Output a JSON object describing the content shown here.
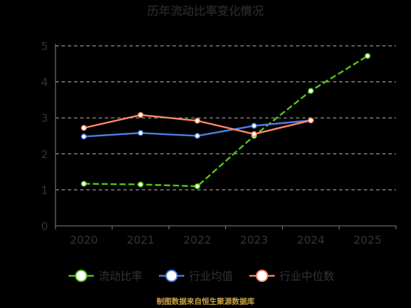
{
  "chart_data": {
    "type": "line",
    "title": "历年流动比率变化情况",
    "categories": [
      "2020",
      "2021",
      "2022",
      "2023",
      "2024",
      "2025"
    ],
    "ylim": [
      0,
      5
    ],
    "yticks": [
      "0",
      "1",
      "2",
      "3",
      "4",
      "5"
    ],
    "grid": true,
    "legend_position": "bottom",
    "series": [
      {
        "name": "流动比率",
        "color": "#52c41a",
        "style": "dashed",
        "values": [
          1.17,
          1.15,
          1.1,
          2.5,
          3.75,
          4.72
        ]
      },
      {
        "name": "行业均值",
        "color": "#4e7ee6",
        "style": "solid",
        "values": [
          2.48,
          2.58,
          2.5,
          2.78,
          2.93,
          null
        ]
      },
      {
        "name": "行业中位数",
        "color": "#f98963",
        "style": "solid",
        "values": [
          2.72,
          3.08,
          2.92,
          2.55,
          2.93,
          null
        ]
      }
    ],
    "source": "制图数据来自恒生聚源数据库",
    "colors": {
      "background": "#000000",
      "grid": "#bbbbbb",
      "axis": "#888888",
      "title": "#222222",
      "text": "#333333",
      "source": "#c8a040"
    }
  }
}
